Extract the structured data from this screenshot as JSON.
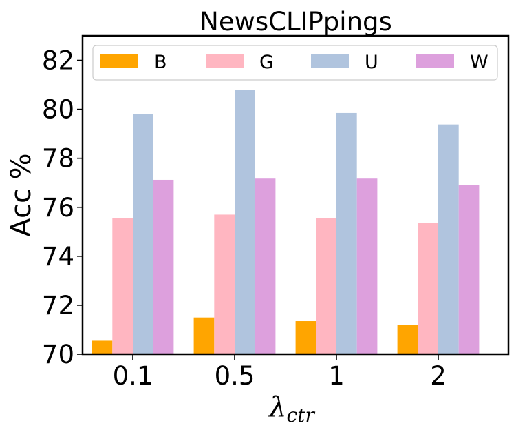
{
  "chart_data": {
    "type": "bar",
    "title": "NewsCLIPpings",
    "xlabel": "λ",
    "xlabel_sub": "ctr",
    "ylabel": "Acc %",
    "categories": [
      "0.1",
      "0.5",
      "1",
      "2"
    ],
    "ylim": [
      70,
      83
    ],
    "yticks": [
      70,
      72,
      74,
      76,
      78,
      80,
      82
    ],
    "legend_position": "top",
    "series": [
      {
        "name": "B",
        "color": "#FFA500",
        "values": [
          70.55,
          71.5,
          71.35,
          71.2
        ]
      },
      {
        "name": "G",
        "color": "#FFB6C1",
        "values": [
          75.55,
          75.7,
          75.55,
          75.35
        ]
      },
      {
        "name": "U",
        "color": "#B0C4DE",
        "values": [
          79.8,
          80.8,
          79.85,
          79.38
        ]
      },
      {
        "name": "W",
        "color": "#DDA0DD",
        "values": [
          77.12,
          77.17,
          77.17,
          76.92
        ]
      }
    ]
  }
}
